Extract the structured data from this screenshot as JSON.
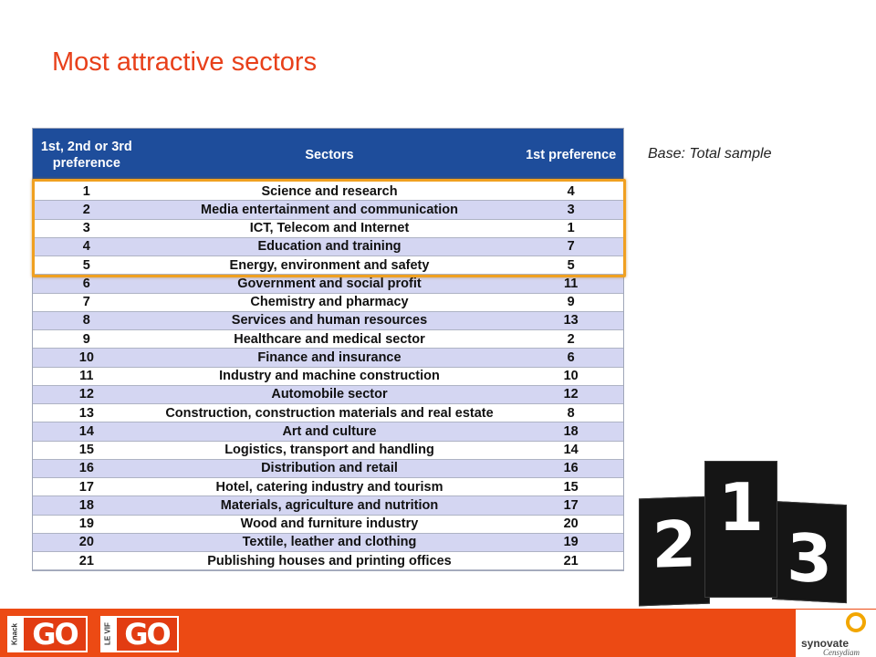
{
  "title": "Most attractive sectors",
  "base_note": "Base: Total sample",
  "table": {
    "headers": [
      "1st, 2nd or 3rd preference",
      "Sectors",
      "1st preference"
    ],
    "rows": [
      {
        "rank": "1",
        "sector": "Science and research",
        "first": "4"
      },
      {
        "rank": "2",
        "sector": "Media entertainment and communication",
        "first": "3"
      },
      {
        "rank": "3",
        "sector": "ICT, Telecom and Internet",
        "first": "1"
      },
      {
        "rank": "4",
        "sector": "Education and training",
        "first": "7"
      },
      {
        "rank": "5",
        "sector": "Energy, environment and safety",
        "first": "5"
      },
      {
        "rank": "6",
        "sector": "Government and social profit",
        "first": "11"
      },
      {
        "rank": "7",
        "sector": "Chemistry and pharmacy",
        "first": "9"
      },
      {
        "rank": "8",
        "sector": "Services and human resources",
        "first": "13"
      },
      {
        "rank": "9",
        "sector": "Healthcare and medical sector",
        "first": "2"
      },
      {
        "rank": "10",
        "sector": "Finance and insurance",
        "first": "6"
      },
      {
        "rank": "11",
        "sector": "Industry and machine construction",
        "first": "10"
      },
      {
        "rank": "12",
        "sector": "Automobile sector",
        "first": "12"
      },
      {
        "rank": "13",
        "sector": "Construction, construction materials and real estate",
        "first": "8"
      },
      {
        "rank": "14",
        "sector": "Art and culture",
        "first": "18"
      },
      {
        "rank": "15",
        "sector": "Logistics, transport and handling",
        "first": "14"
      },
      {
        "rank": "16",
        "sector": "Distribution and retail",
        "first": "16"
      },
      {
        "rank": "17",
        "sector": "Hotel, catering industry and tourism",
        "first": "15"
      },
      {
        "rank": "18",
        "sector": "Materials, agriculture and nutrition",
        "first": "17"
      },
      {
        "rank": "19",
        "sector": "Wood and furniture industry",
        "first": "20"
      },
      {
        "rank": "20",
        "sector": "Textile, leather and clothing",
        "first": "19"
      },
      {
        "rank": "21",
        "sector": "Publishing houses and printing offices",
        "first": "21"
      }
    ]
  },
  "podium": {
    "labels": [
      "2",
      "1",
      "3"
    ]
  },
  "footer": {
    "logo1": {
      "tag": "Knack",
      "text": "GO"
    },
    "logo2": {
      "tag": "LE VIF",
      "text": "GO"
    },
    "brand": {
      "name": "synovate",
      "sub": "Censydiam"
    }
  },
  "colors": {
    "title": "#e8401a",
    "header_bg": "#1e4d9b",
    "row_alt": "#d4d6f2",
    "highlight": "#f0a020",
    "footer_bg": "#ec4a14"
  }
}
